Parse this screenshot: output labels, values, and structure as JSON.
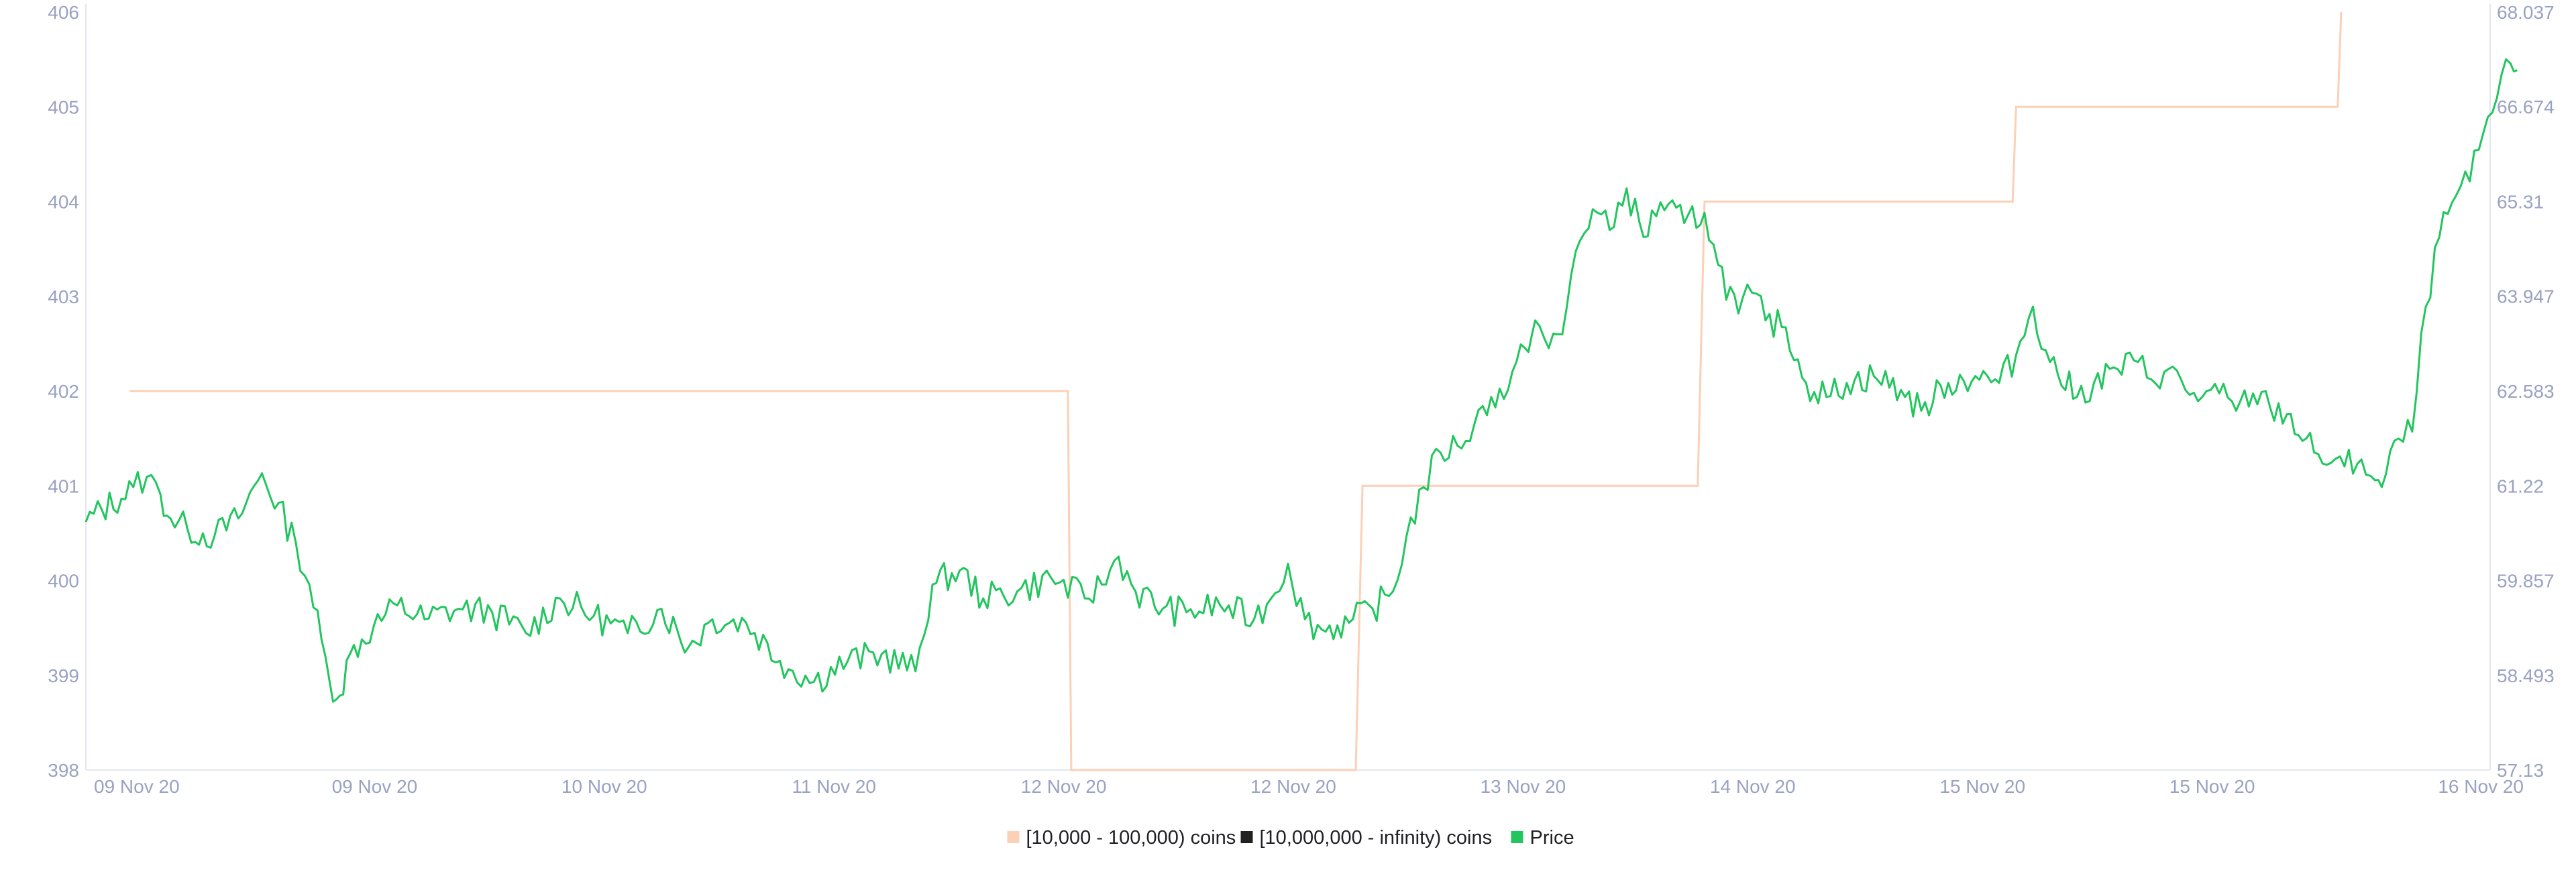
{
  "chart_data": {
    "type": "line",
    "x_tick_labels": [
      "09 Nov 20",
      "09 Nov 20",
      "10 Nov 20",
      "11 Nov 20",
      "12 Nov 20",
      "12 Nov 20",
      "13 Nov 20",
      "14 Nov 20",
      "15 Nov 20",
      "15 Nov 20",
      "16 Nov 20"
    ],
    "y_left": {
      "ticks": [
        398,
        399,
        400,
        401,
        402,
        403,
        404,
        405,
        406
      ],
      "tick_labels": [
        "398",
        "399",
        "400",
        "401",
        "402",
        "403",
        "404",
        "405",
        "406"
      ],
      "range": [
        398,
        406
      ]
    },
    "y_right": {
      "ticks": [
        57.13,
        58.493,
        59.857,
        61.22,
        62.583,
        63.947,
        65.31,
        66.674,
        68.037
      ],
      "tick_labels": [
        "57.13",
        "58.493",
        "59.857",
        "61.22",
        "62.583",
        "63.947",
        "65.31",
        "66.674",
        "68.037"
      ],
      "range": [
        57.13,
        68.037
      ]
    },
    "x_range": [
      0,
      7.1
    ],
    "grid": false,
    "legend_position": "bottom-center",
    "series": [
      {
        "name": "[10,000 - 100,000) coins",
        "axis": "left",
        "color": "#fbd0b6",
        "step": true,
        "points": [
          [
            0.13,
            402
          ],
          [
            2.9,
            402
          ],
          [
            2.91,
            398
          ],
          [
            3.75,
            398
          ],
          [
            3.77,
            401
          ],
          [
            4.76,
            401
          ],
          [
            4.78,
            404
          ],
          [
            5.69,
            404
          ],
          [
            5.7,
            405
          ],
          [
            6.65,
            405
          ],
          [
            6.66,
            406
          ]
        ]
      },
      {
        "name": "[10,000,000 - infinity) coins",
        "axis": "left",
        "color": "#222222",
        "points": []
      },
      {
        "name": "Price",
        "axis": "right",
        "color": "#22c55e",
        "anchors": [
          [
            0.0,
            60.7
          ],
          [
            0.14,
            61.2
          ],
          [
            0.18,
            61.35
          ],
          [
            0.22,
            61.1
          ],
          [
            0.25,
            60.75
          ],
          [
            0.3,
            60.6
          ],
          [
            0.38,
            60.5
          ],
          [
            0.45,
            60.75
          ],
          [
            0.52,
            61.4
          ],
          [
            0.62,
            60.4
          ],
          [
            0.66,
            59.8
          ],
          [
            0.72,
            58.4
          ],
          [
            0.75,
            58.2
          ],
          [
            0.78,
            58.8
          ],
          [
            0.85,
            59.2
          ],
          [
            0.92,
            59.5
          ],
          [
            1.0,
            59.3
          ],
          [
            1.1,
            59.45
          ],
          [
            1.2,
            59.4
          ],
          [
            1.3,
            59.1
          ],
          [
            1.4,
            59.6
          ],
          [
            1.5,
            59.35
          ],
          [
            1.6,
            59.1
          ],
          [
            1.7,
            59.45
          ],
          [
            1.78,
            58.9
          ],
          [
            1.85,
            59.3
          ],
          [
            1.95,
            59.25
          ],
          [
            2.05,
            58.7
          ],
          [
            2.15,
            58.4
          ],
          [
            2.25,
            58.7
          ],
          [
            2.35,
            58.8
          ],
          [
            2.45,
            58.55
          ],
          [
            2.5,
            59.8
          ],
          [
            2.58,
            60.0
          ],
          [
            2.65,
            59.6
          ],
          [
            2.75,
            59.7
          ],
          [
            2.85,
            59.9
          ],
          [
            2.95,
            59.6
          ],
          [
            3.0,
            59.8
          ],
          [
            3.05,
            60.2
          ],
          [
            3.1,
            59.7
          ],
          [
            3.18,
            59.45
          ],
          [
            3.25,
            59.4
          ],
          [
            3.35,
            59.5
          ],
          [
            3.45,
            59.3
          ],
          [
            3.5,
            59.6
          ],
          [
            3.55,
            60.1
          ],
          [
            3.6,
            59.3
          ],
          [
            3.65,
            59.15
          ],
          [
            3.73,
            59.25
          ],
          [
            3.8,
            59.45
          ],
          [
            3.86,
            59.7
          ],
          [
            3.9,
            60.5
          ],
          [
            3.95,
            61.2
          ],
          [
            4.0,
            61.7
          ],
          [
            4.05,
            61.8
          ],
          [
            4.1,
            62.1
          ],
          [
            4.15,
            62.5
          ],
          [
            4.2,
            62.6
          ],
          [
            4.25,
            63.2
          ],
          [
            4.28,
            63.6
          ],
          [
            4.32,
            63.2
          ],
          [
            4.36,
            63.4
          ],
          [
            4.4,
            64.6
          ],
          [
            4.45,
            65.2
          ],
          [
            4.5,
            64.9
          ],
          [
            4.55,
            65.5
          ],
          [
            4.6,
            64.8
          ],
          [
            4.65,
            65.3
          ],
          [
            4.72,
            65.0
          ],
          [
            4.78,
            65.15
          ],
          [
            4.82,
            64.4
          ],
          [
            4.88,
            63.7
          ],
          [
            4.92,
            64.0
          ],
          [
            4.96,
            63.6
          ],
          [
            5.02,
            63.5
          ],
          [
            5.08,
            62.7
          ],
          [
            5.14,
            62.5
          ],
          [
            5.2,
            62.7
          ],
          [
            5.28,
            62.8
          ],
          [
            5.36,
            62.6
          ],
          [
            5.42,
            62.3
          ],
          [
            5.5,
            62.7
          ],
          [
            5.58,
            62.8
          ],
          [
            5.65,
            62.7
          ],
          [
            5.7,
            63.1
          ],
          [
            5.75,
            63.8
          ],
          [
            5.8,
            63.0
          ],
          [
            5.88,
            62.5
          ],
          [
            5.93,
            62.7
          ],
          [
            6.0,
            62.9
          ],
          [
            6.06,
            63.0
          ],
          [
            6.1,
            62.75
          ],
          [
            6.15,
            62.9
          ],
          [
            6.2,
            62.6
          ],
          [
            6.25,
            62.5
          ],
          [
            6.3,
            62.55
          ],
          [
            6.35,
            62.3
          ],
          [
            6.4,
            62.55
          ],
          [
            6.45,
            62.35
          ],
          [
            6.5,
            62.25
          ],
          [
            6.58,
            61.7
          ],
          [
            6.63,
            61.55
          ],
          [
            6.67,
            61.5
          ],
          [
            6.72,
            61.6
          ],
          [
            6.76,
            61.3
          ],
          [
            6.78,
            61.2
          ],
          [
            6.83,
            61.9
          ],
          [
            6.87,
            62.0
          ],
          [
            6.91,
            63.8
          ],
          [
            6.95,
            64.8
          ],
          [
            7.0,
            65.4
          ],
          [
            7.04,
            65.6
          ],
          [
            7.08,
            66.3
          ],
          [
            7.12,
            66.8
          ],
          [
            7.16,
            67.3
          ],
          [
            7.18,
            67.2
          ]
        ]
      }
    ]
  },
  "legend": [
    {
      "label": "[10,000 - 100,000) coins",
      "color": "#fbd0b6"
    },
    {
      "label": "[10,000,000 - infinity) coins",
      "color": "#222222"
    },
    {
      "label": "Price",
      "color": "#22c55e"
    }
  ]
}
